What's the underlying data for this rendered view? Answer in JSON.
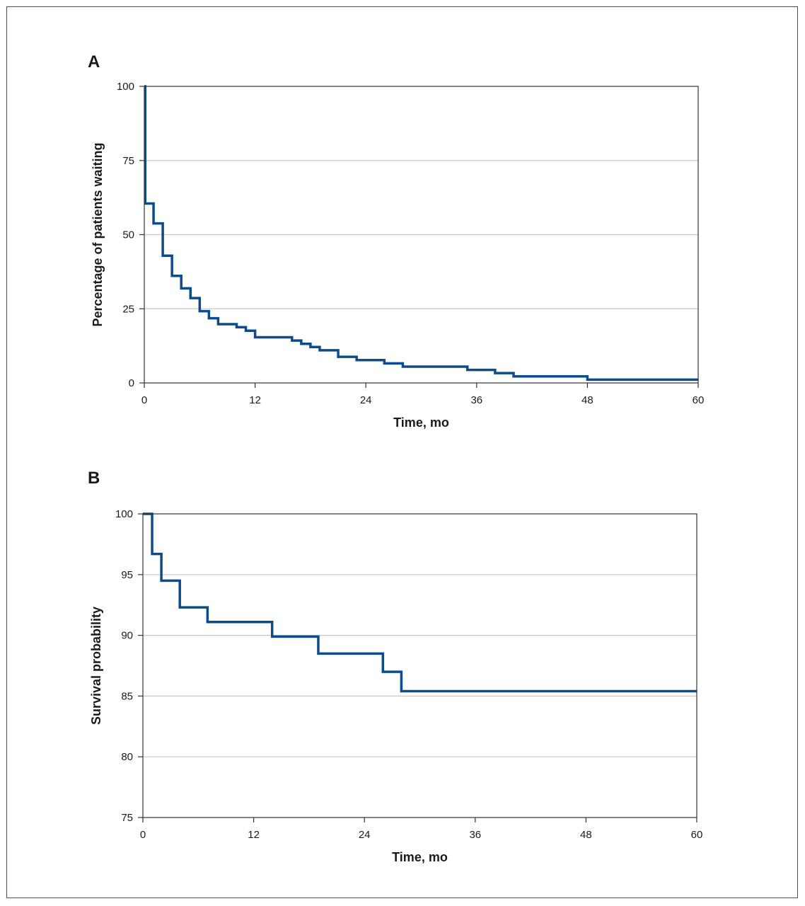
{
  "colors": {
    "series": "#0d4c8c",
    "grid": "#c8c8c8",
    "frame": "#333333"
  },
  "chart_data": [
    {
      "panel": "A",
      "type": "line",
      "step": true,
      "xlabel": "Time, mo",
      "ylabel": "Percentage of patients waiting",
      "xlim": [
        0,
        60
      ],
      "ylim": [
        0,
        100
      ],
      "xticks": [
        0,
        12,
        24,
        36,
        48,
        60
      ],
      "yticks": [
        0,
        25,
        50,
        75,
        100
      ],
      "grid": "horizontal",
      "series": [
        {
          "x": [
            0,
            0.1,
            1,
            2,
            3,
            4,
            5,
            6,
            7,
            8,
            10,
            11,
            12,
            16,
            17,
            18,
            19,
            21,
            23,
            26,
            28,
            35,
            38,
            40,
            48,
            60
          ],
          "y": [
            100,
            60.5,
            53.8,
            42.9,
            36.1,
            31.9,
            28.6,
            24.2,
            21.8,
            19.8,
            18.8,
            17.6,
            15.4,
            14.3,
            13.2,
            12.1,
            11.0,
            8.8,
            7.7,
            6.6,
            5.5,
            4.4,
            3.3,
            2.2,
            1.1,
            1.1
          ]
        }
      ]
    },
    {
      "panel": "B",
      "type": "line",
      "step": true,
      "xlabel": "Time, mo",
      "ylabel": "Survival probability",
      "xlim": [
        0,
        60
      ],
      "ylim": [
        75,
        100
      ],
      "xticks": [
        0,
        12,
        24,
        36,
        48,
        60
      ],
      "yticks": [
        75,
        80,
        85,
        90,
        95,
        100
      ],
      "grid": "horizontal",
      "series": [
        {
          "x": [
            0,
            1,
            2,
            4,
            7,
            14,
            19,
            26,
            28,
            60
          ],
          "y": [
            100,
            96.7,
            94.5,
            92.3,
            91.1,
            89.9,
            88.5,
            87.0,
            85.4,
            85.4
          ]
        }
      ]
    }
  ]
}
